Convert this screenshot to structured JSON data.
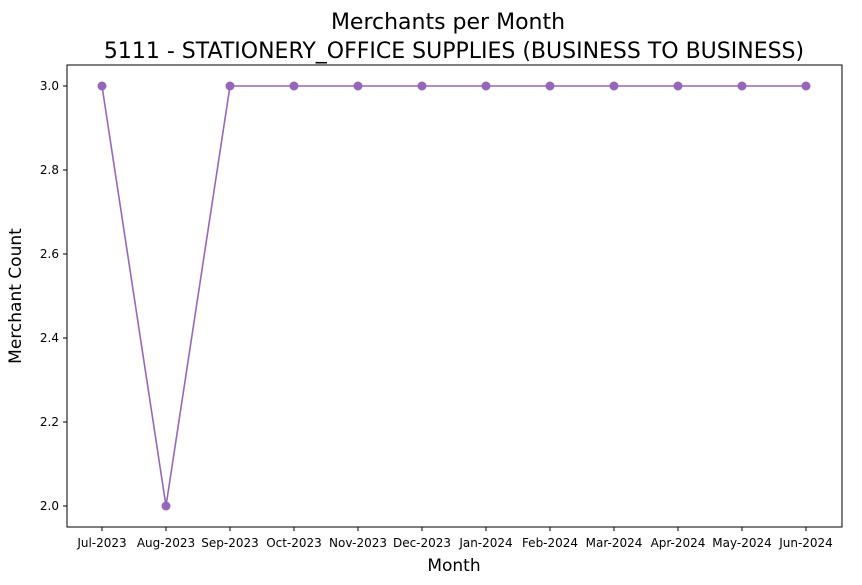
{
  "chart_data": {
    "type": "line",
    "title": "Merchants per Month",
    "subtitle": "5111 - STATIONERY_OFFICE SUPPLIES (BUSINESS TO BUSINESS)",
    "xlabel": "Month",
    "ylabel": "Merchant Count",
    "categories": [
      "Jul-2023",
      "Aug-2023",
      "Sep-2023",
      "Oct-2023",
      "Nov-2023",
      "Dec-2023",
      "Jan-2024",
      "Feb-2024",
      "Mar-2024",
      "Apr-2024",
      "May-2024",
      "Jun-2024"
    ],
    "values": [
      3,
      2,
      3,
      3,
      3,
      3,
      3,
      3,
      3,
      3,
      3,
      3
    ],
    "ylim": [
      1.95,
      3.05
    ],
    "yticks": [
      "2.0",
      "2.2",
      "2.4",
      "2.6",
      "2.8",
      "3.0"
    ],
    "line_color": "#9467bd",
    "grid": false,
    "marker": "circle"
  }
}
